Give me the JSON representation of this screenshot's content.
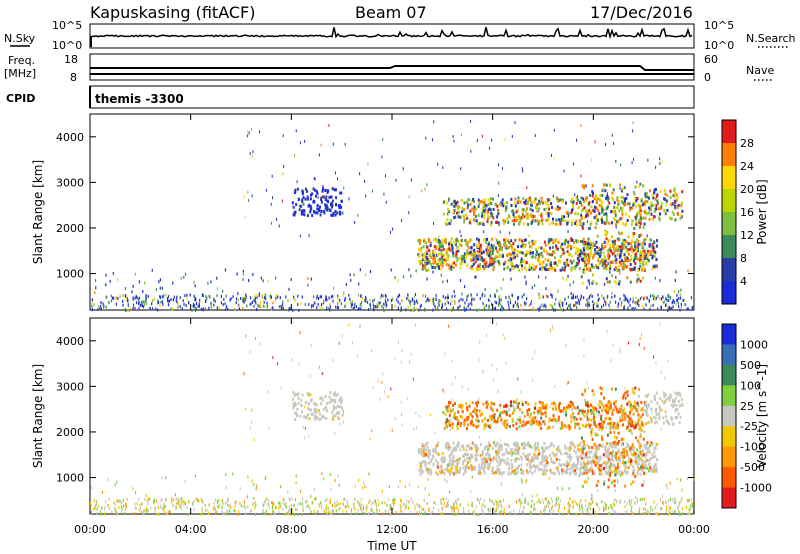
{
  "header": {
    "station": "Kapuskasing (fitACF)",
    "beam": "Beam 07",
    "date": "17/Dec/2016"
  },
  "status_panels": {
    "nsky_label": "N.Sky",
    "nsky_ticks": [
      "10^5",
      "10^0"
    ],
    "nsearch_label": "N.Search",
    "nsearch_ticks": [
      "10^5",
      "10^0"
    ],
    "freq_label": "Freq.",
    "freq_unit": "[MHz]",
    "freq_ticks": [
      "18",
      "8"
    ],
    "nave_label": "Nave",
    "nave_ticks": [
      "60",
      "0"
    ],
    "cpid_label": "CPID",
    "cpid_value": "themis -3300"
  },
  "chart_data": [
    {
      "type": "heatmap",
      "name": "power",
      "ylabel": "Slant Range [km]",
      "yticks": [
        "4000",
        "3000",
        "2000",
        "1000"
      ],
      "ylim": [
        200,
        4500
      ],
      "colorbar_label": "Power [dB]",
      "colorbar_ticks": [
        "28",
        "24",
        "20",
        "16",
        "12",
        "8",
        "4"
      ],
      "colorbar_colors": [
        "#e41a1c",
        "#ff7f00",
        "#ffd700",
        "#bcd400",
        "#7fbf3f",
        "#3c8a5a",
        "#2a3ca8",
        "#1a2cd8"
      ]
    },
    {
      "type": "heatmap",
      "name": "velocity",
      "ylabel": "Slant Range [km]",
      "yticks": [
        "4000",
        "3000",
        "2000",
        "1000"
      ],
      "ylim": [
        200,
        4500
      ],
      "colorbar_label": "Velocity [m s^-1]",
      "colorbar_ticks": [
        "1000",
        "500",
        "100",
        "25",
        "-25",
        "-100",
        "-500",
        "-1000"
      ],
      "colorbar_colors": [
        "#1a2cd8",
        "#3a6fb8",
        "#3c8a5a",
        "#7fcf3f",
        "#c8c8c0",
        "#f0c800",
        "#ff9a00",
        "#ff5a00",
        "#e41a1c"
      ]
    }
  ],
  "x_axis": {
    "ticks": [
      "00:00",
      "04:00",
      "08:00",
      "12:00",
      "16:00",
      "20:00",
      "00:00"
    ],
    "label": "Time UT"
  }
}
